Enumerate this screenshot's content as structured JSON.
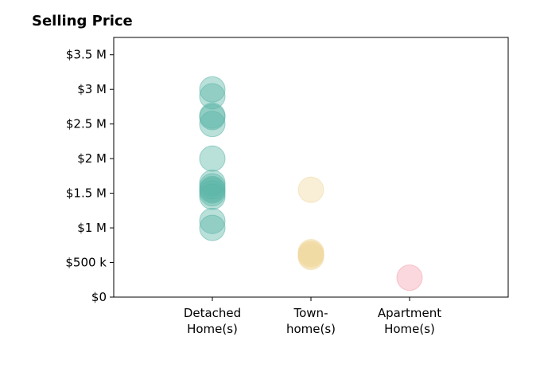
{
  "chart_data": {
    "type": "scatter",
    "title": "Selling Price",
    "xlabel": "",
    "ylabel": "",
    "categories": [
      [
        "Detached",
        "Home(s)"
      ],
      [
        "Town-",
        "home(s)"
      ],
      [
        "Apartment",
        "Home(s)"
      ]
    ],
    "ylim": [
      0,
      3750000
    ],
    "yticks": [
      {
        "value": 0,
        "label": "$0"
      },
      {
        "value": 500000,
        "label": "$500 k"
      },
      {
        "value": 1000000,
        "label": "$1 M"
      },
      {
        "value": 1500000,
        "label": "$1.5 M"
      },
      {
        "value": 2000000,
        "label": "$2 M"
      },
      {
        "value": 2500000,
        "label": "$2.5 M"
      },
      {
        "value": 3000000,
        "label": "$3 M"
      },
      {
        "value": 3500000,
        "label": "$3.5 M"
      }
    ],
    "grid": false,
    "series": [
      {
        "category_index": 0,
        "color": "#5bb5a8",
        "values": [
          3000000,
          2900000,
          2620000,
          2600000,
          2500000,
          2000000,
          1650000,
          1600000,
          1560000,
          1540000,
          1500000,
          1450000,
          1100000,
          1000000
        ]
      },
      {
        "category_index": 1,
        "color": "#f0d9a0",
        "values": [
          1550000,
          650000,
          630000,
          620000,
          600000,
          580000
        ]
      },
      {
        "category_index": 2,
        "color": "#f4a3ae",
        "values": [
          280000
        ]
      }
    ]
  }
}
